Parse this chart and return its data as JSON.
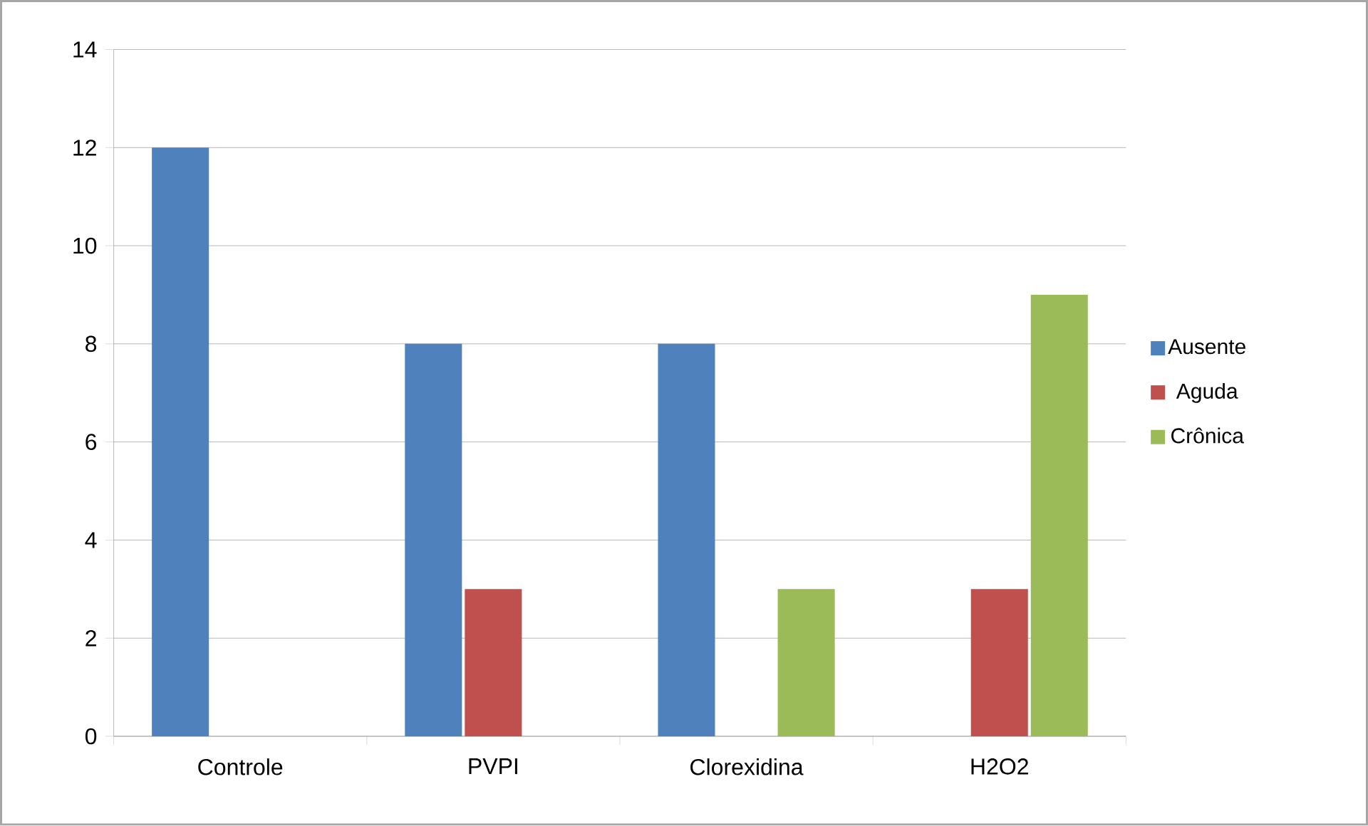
{
  "chart_data": {
    "type": "bar",
    "categories": [
      "Controle",
      "PVPI",
      "Clorexidina",
      "H2O2"
    ],
    "series": [
      {
        "name": "Ausente",
        "color": "#4f81bd",
        "values": [
          12,
          8,
          8,
          0
        ]
      },
      {
        "name": "Aguda",
        "color": "#c0504d",
        "values": [
          0,
          3,
          0,
          3
        ]
      },
      {
        "name": "Crônica",
        "color": "#9bbb59",
        "values": [
          0,
          0,
          3,
          9
        ]
      }
    ],
    "ylim": [
      0,
      14
    ],
    "yticks": [
      0,
      2,
      4,
      6,
      8,
      10,
      12,
      14
    ],
    "grid": "y",
    "legend": "right"
  }
}
